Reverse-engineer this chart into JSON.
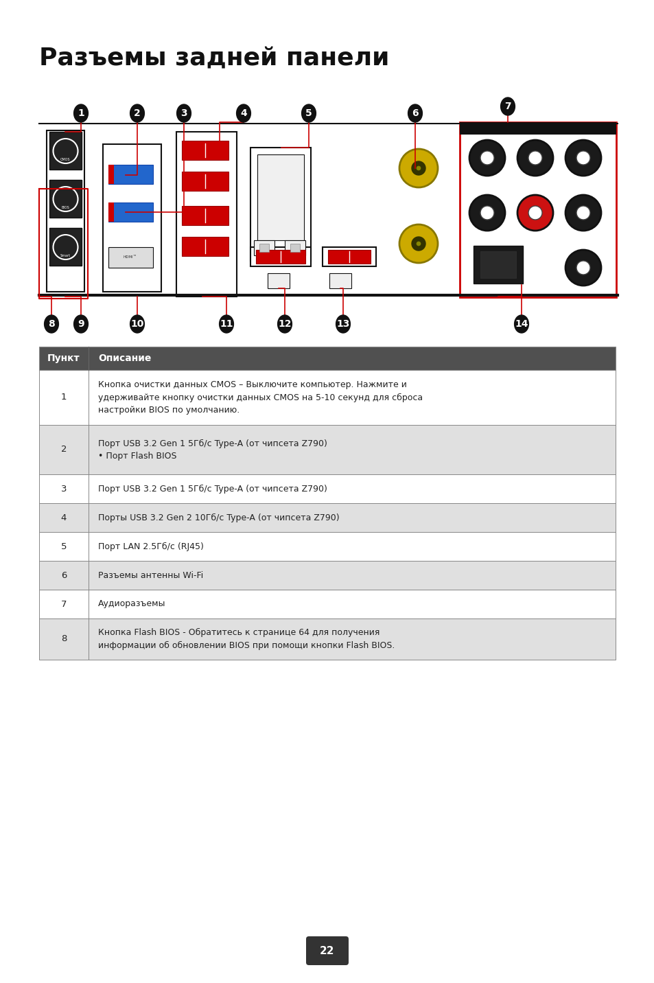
{
  "title": "Разъемы задней панели",
  "background_color": "#ffffff",
  "page_number": "22",
  "table_header": [
    "Пункт",
    "Описание"
  ],
  "table_header_bg": "#505050",
  "table_header_fg": "#ffffff",
  "table_rows": [
    {
      "num": "1",
      "desc": "Кнопка очистки данных CMOS – Выключите компьютер. Нажмите и\nудерживайте кнопку очистки данных CMOS на 5-10 секунд для сброса\nнастройки BIOS по умолчанию.",
      "shade": false
    },
    {
      "num": "2",
      "desc": "Порт USB 3.2 Gen 1 5Гб/с Type-A (от чипсета Z790)\n• Порт Flash BIOS",
      "shade": true
    },
    {
      "num": "3",
      "desc": "Порт USB 3.2 Gen 1 5Гб/с Type-A (от чипсета Z790)",
      "shade": false
    },
    {
      "num": "4",
      "desc": "Порты USB 3.2 Gen 2 10Гб/с Type-A (от чипсета Z790)",
      "shade": true
    },
    {
      "num": "5",
      "desc": "Порт LAN 2.5Гб/с (RJ45)",
      "shade": false
    },
    {
      "num": "6",
      "desc": "Разъемы антенны Wi-Fi",
      "shade": true
    },
    {
      "num": "7",
      "desc": "Аудиоразъемы",
      "shade": false
    },
    {
      "num": "8",
      "desc": "Кнопка Flash BIOS - Обратитесь к странице 64 для получения\nинформации об обновлении BIOS при помощи кнопки Flash BIOS.",
      "shade": true
    }
  ],
  "row_shade_color": "#e0e0e0",
  "row_white_color": "#ffffff",
  "table_border_color": "#888888"
}
